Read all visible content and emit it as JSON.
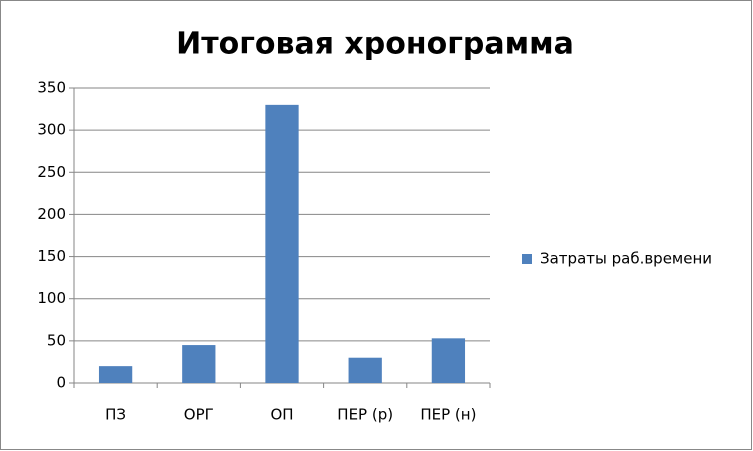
{
  "chart_data": {
    "type": "bar",
    "title": "Итоговая хронограмма",
    "categories": [
      "ПЗ",
      "ОРГ",
      "ОП",
      "ПЕР (р)",
      "ПЕР (н)"
    ],
    "series": [
      {
        "name": "Затраты раб.времени",
        "color": "#4f81bd",
        "values": [
          20,
          45,
          330,
          30,
          53
        ]
      }
    ],
    "ylim": [
      0,
      350
    ],
    "yticks": [
      0,
      50,
      100,
      150,
      200,
      250,
      300,
      350
    ],
    "grid": true,
    "legend": "right"
  }
}
